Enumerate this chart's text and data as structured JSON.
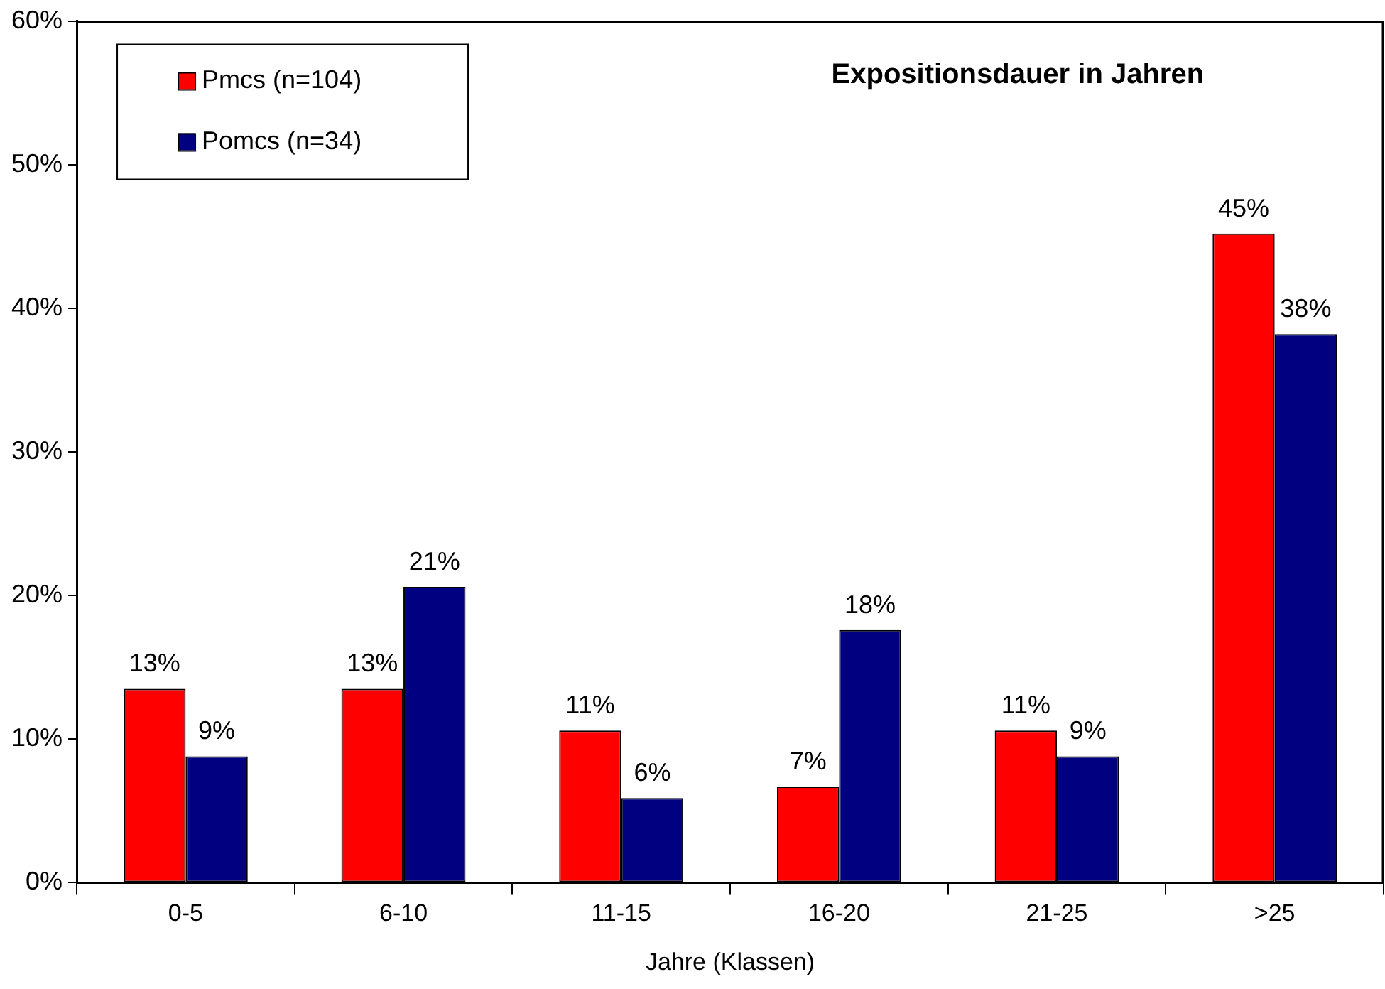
{
  "chart_data": {
    "type": "bar",
    "title": "Expositionsdauer in Jahren",
    "xlabel": "Jahre (Klassen)",
    "categories": [
      "0-5",
      "6-10",
      "11-15",
      "16-20",
      "21-25",
      ">25"
    ],
    "series": [
      {
        "name": "Pmcs (n=104)",
        "color": "#ff0000",
        "values": [
          13.5,
          13.5,
          10.6,
          6.7,
          10.6,
          45.2
        ],
        "value_labels": [
          "13%",
          "13%",
          "11%",
          "7%",
          "11%",
          "45%"
        ]
      },
      {
        "name": "Pomcs (n=34)",
        "color": "#000080",
        "values": [
          8.8,
          20.6,
          5.9,
          17.6,
          8.8,
          38.2
        ],
        "value_labels": [
          "9%",
          "21%",
          "6%",
          "18%",
          "9%",
          "38%"
        ]
      }
    ],
    "ylim": [
      0,
      60
    ],
    "yticks": [
      {
        "value": 0,
        "label": "0%"
      },
      {
        "value": 10,
        "label": "10%"
      },
      {
        "value": 20,
        "label": "20%"
      },
      {
        "value": 30,
        "label": "30%"
      },
      {
        "value": 40,
        "label": "40%"
      },
      {
        "value": 50,
        "label": "50%"
      },
      {
        "value": 60,
        "label": "60%"
      }
    ],
    "grid": false,
    "legend": "top left"
  }
}
